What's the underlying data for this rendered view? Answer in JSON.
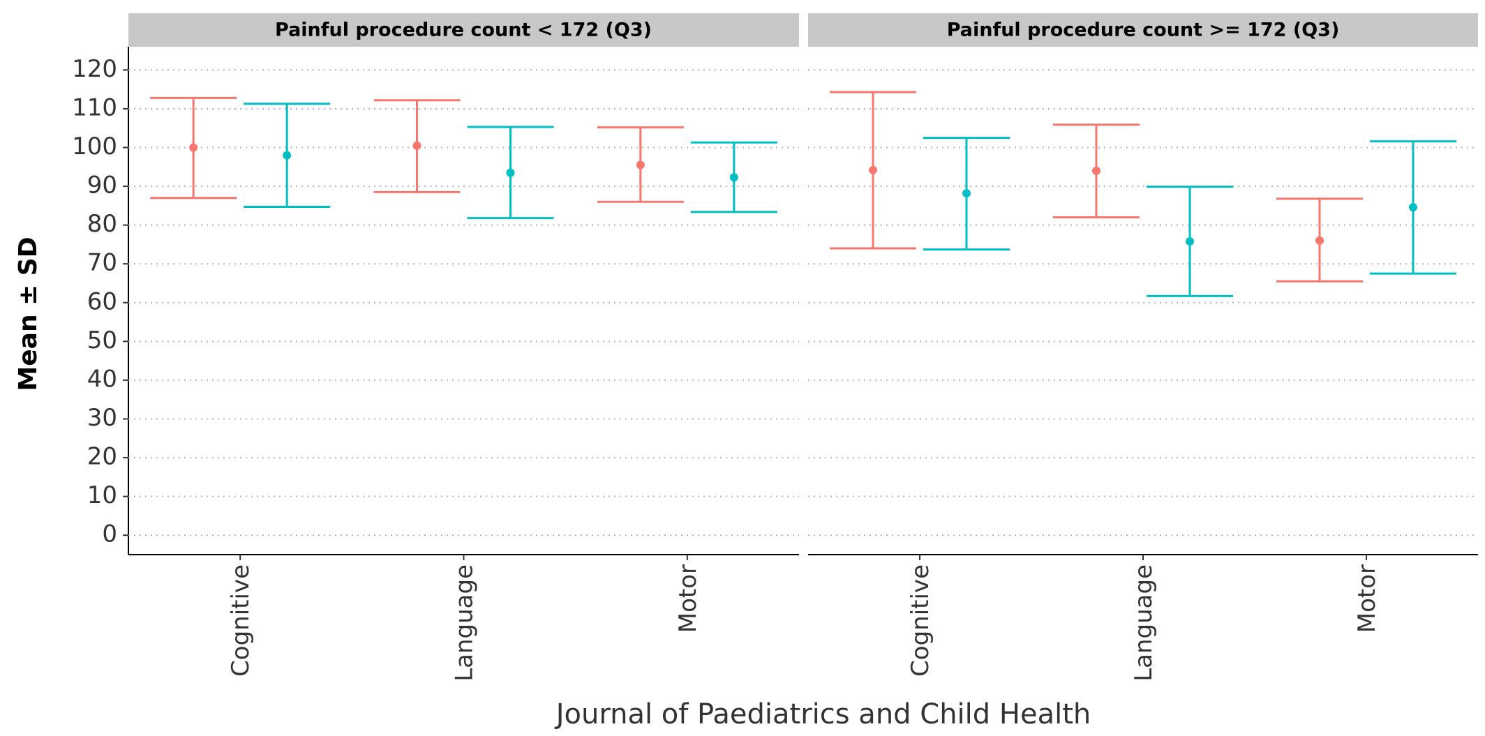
{
  "chart_data": {
    "type": "errorbar",
    "ylabel": "Mean ± SD",
    "xlabel": "",
    "ylim": [
      -5,
      126
    ],
    "y_ticks": [
      0,
      10,
      20,
      30,
      40,
      50,
      60,
      70,
      80,
      90,
      100,
      110,
      120
    ],
    "grid": "horizontal-dotted",
    "colors": {
      "red": "#F8766D",
      "cyan": "#00BFC4",
      "strip_bg": "#C8C8C8",
      "grid": "#B4B4B4"
    },
    "categories": [
      "Cognitive",
      "Language",
      "Motor"
    ],
    "caption": "Journal of Paediatrics and Child Health",
    "panels": [
      {
        "title": "Painful procedure count < 172 (Q3)",
        "series": [
          {
            "color": "#F8766D",
            "mean": [
              100,
              100.5,
              95.5
            ],
            "lower": [
              87,
              88.5,
              86
            ],
            "upper": [
              112.8,
              112.2,
              105.2
            ]
          },
          {
            "color": "#00BFC4",
            "mean": [
              98,
              93.5,
              92.3
            ],
            "lower": [
              84.7,
              81.8,
              83.4
            ],
            "upper": [
              111.3,
              105.3,
              101.3
            ]
          }
        ]
      },
      {
        "title": "Painful procedure count >= 172 (Q3)",
        "series": [
          {
            "color": "#F8766D",
            "mean": [
              94.2,
              94,
              76
            ],
            "lower": [
              74,
              82,
              65.5
            ],
            "upper": [
              114.3,
              105.9,
              86.8
            ]
          },
          {
            "color": "#00BFC4",
            "mean": [
              88.2,
              75.8,
              84.6
            ],
            "lower": [
              73.7,
              61.7,
              67.5
            ],
            "upper": [
              102.5,
              89.9,
              101.6
            ]
          }
        ]
      }
    ]
  }
}
